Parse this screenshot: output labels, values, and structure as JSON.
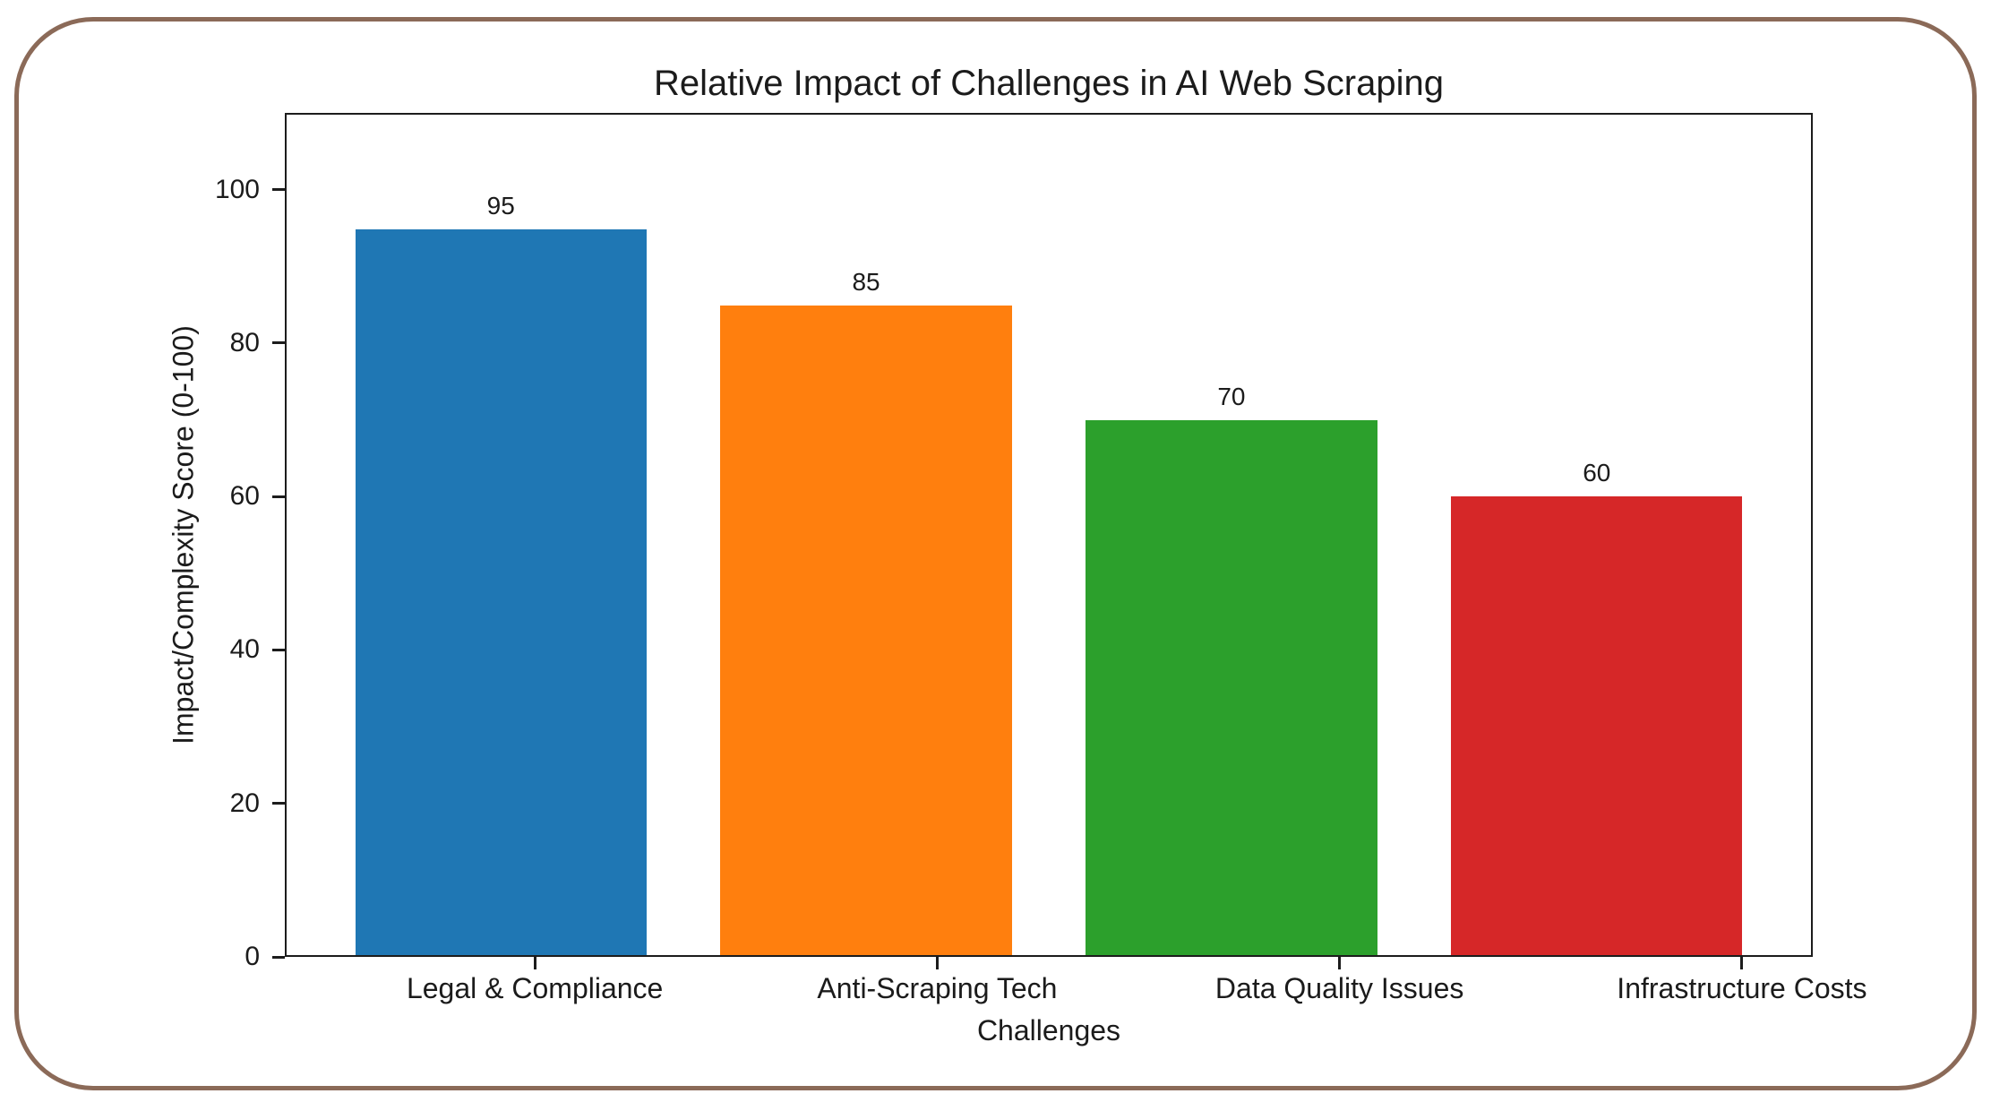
{
  "figure": {
    "border_color": "#8B6A58",
    "background": "#ffffff"
  },
  "chart_data": {
    "type": "bar",
    "title": "Relative Impact of Challenges in AI Web Scraping",
    "xlabel": "Challenges",
    "ylabel": "Impact/Complexity Score (0-100)",
    "categories": [
      "Legal & Compliance",
      "Anti-Scraping Tech",
      "Data Quality Issues",
      "Infrastructure Costs"
    ],
    "values": [
      95,
      85,
      70,
      60
    ],
    "value_labels": [
      "95",
      "85",
      "70",
      "60"
    ],
    "bar_colors": [
      "#1f77b4",
      "#ff7f0e",
      "#2ca02c",
      "#d62728"
    ],
    "yticks": [
      0,
      20,
      40,
      60,
      80,
      100
    ],
    "ylim": [
      0,
      110
    ],
    "grid": false,
    "legend": "none",
    "frame_color": "#1c1c1c"
  }
}
